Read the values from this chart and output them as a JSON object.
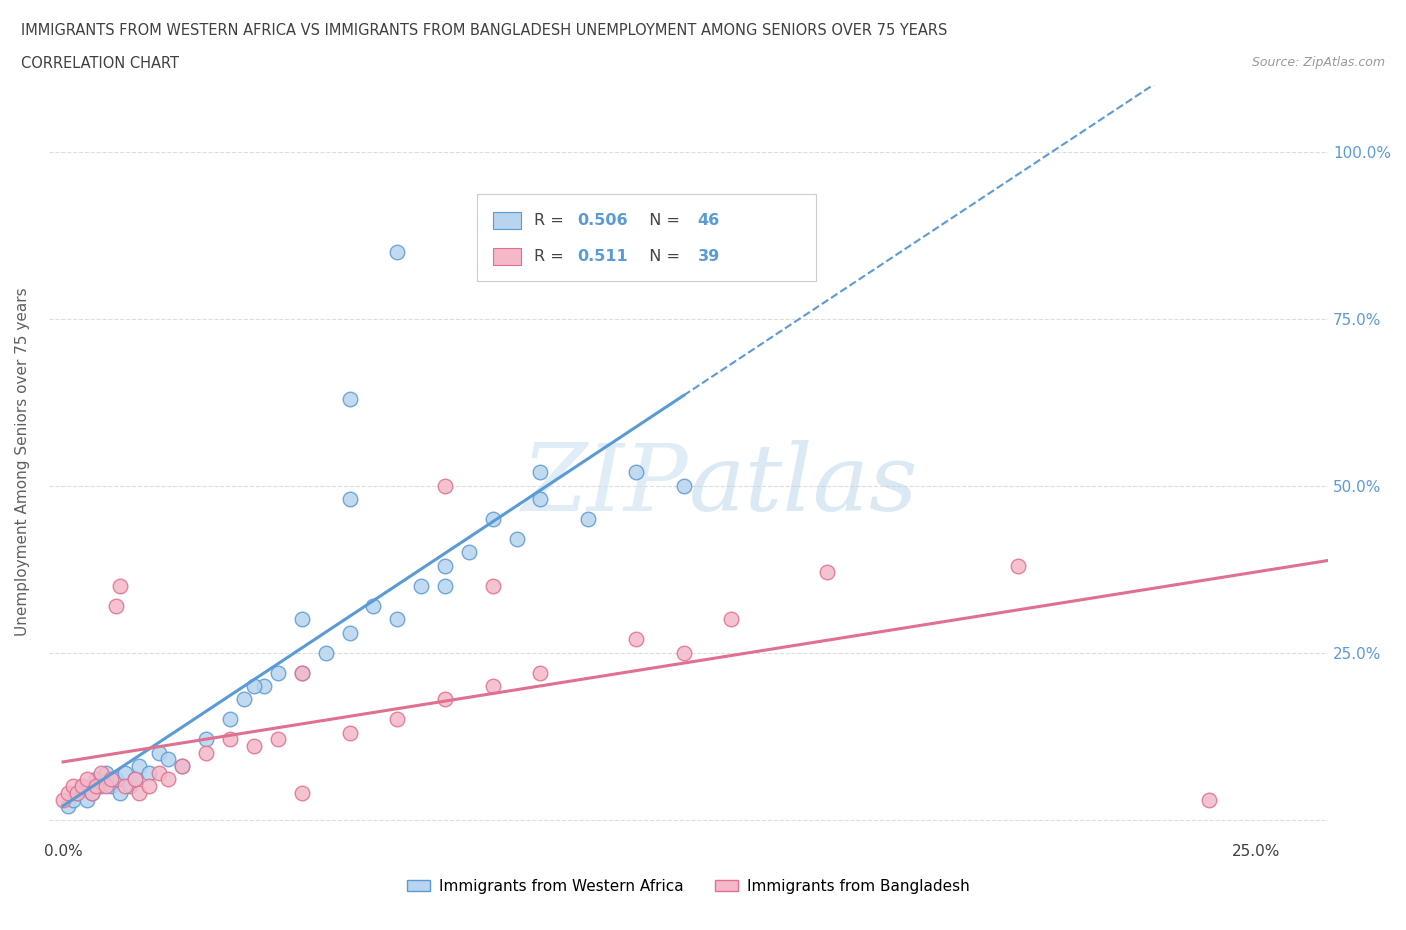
{
  "title_line1": "IMMIGRANTS FROM WESTERN AFRICA VS IMMIGRANTS FROM BANGLADESH UNEMPLOYMENT AMONG SENIORS OVER 75 YEARS",
  "title_line2": "CORRELATION CHART",
  "source": "Source: ZipAtlas.com",
  "ylabel": "Unemployment Among Seniors over 75 years",
  "watermark": "ZIPatlas",
  "legend_entries": [
    {
      "label": "Immigrants from Western Africa",
      "R": 0.506,
      "N": 46,
      "color": "#b8d4ee",
      "line_color": "#5b9bd5"
    },
    {
      "label": "Immigrants from Bangladesh",
      "R": 0.511,
      "N": 39,
      "color": "#f4b8c8",
      "line_color": "#e07090"
    }
  ],
  "xlim": [
    -0.003,
    0.265
  ],
  "ylim": [
    -0.03,
    1.1
  ],
  "xticks": [
    0.0,
    0.05,
    0.1,
    0.15,
    0.2,
    0.25
  ],
  "xtick_labels": [
    "0.0%",
    "",
    "",
    "",
    "",
    "25.0%"
  ],
  "ytick_positions": [
    0.0,
    0.25,
    0.5,
    0.75,
    1.0
  ],
  "ytick_labels": [
    "",
    "25.0%",
    "50.0%",
    "75.0%",
    "100.0%"
  ],
  "wa_x": [
    0.001,
    0.002,
    0.003,
    0.004,
    0.005,
    0.006,
    0.007,
    0.008,
    0.009,
    0.01,
    0.011,
    0.012,
    0.013,
    0.014,
    0.015,
    0.016,
    0.018,
    0.02,
    0.022,
    0.025,
    0.03,
    0.035,
    0.038,
    0.042,
    0.05,
    0.055,
    0.06,
    0.065,
    0.07,
    0.075,
    0.08,
    0.085,
    0.09,
    0.095,
    0.1,
    0.11,
    0.12,
    0.13,
    0.06,
    0.07,
    0.04,
    0.045,
    0.05,
    0.06,
    0.08,
    0.1
  ],
  "wa_y": [
    0.02,
    0.03,
    0.04,
    0.05,
    0.03,
    0.04,
    0.06,
    0.05,
    0.07,
    0.05,
    0.06,
    0.04,
    0.07,
    0.05,
    0.06,
    0.08,
    0.07,
    0.1,
    0.09,
    0.08,
    0.12,
    0.15,
    0.18,
    0.2,
    0.22,
    0.25,
    0.28,
    0.32,
    0.3,
    0.35,
    0.38,
    0.4,
    0.45,
    0.42,
    0.48,
    0.45,
    0.52,
    0.5,
    0.63,
    0.85,
    0.2,
    0.22,
    0.3,
    0.48,
    0.35,
    0.52
  ],
  "bd_x": [
    0.0,
    0.001,
    0.002,
    0.003,
    0.004,
    0.005,
    0.006,
    0.007,
    0.008,
    0.009,
    0.01,
    0.011,
    0.012,
    0.013,
    0.015,
    0.016,
    0.018,
    0.02,
    0.022,
    0.025,
    0.03,
    0.035,
    0.04,
    0.045,
    0.05,
    0.06,
    0.07,
    0.08,
    0.09,
    0.1,
    0.12,
    0.14,
    0.16,
    0.2,
    0.24,
    0.05,
    0.08,
    0.09,
    0.13
  ],
  "bd_y": [
    0.03,
    0.04,
    0.05,
    0.04,
    0.05,
    0.06,
    0.04,
    0.05,
    0.07,
    0.05,
    0.06,
    0.32,
    0.35,
    0.05,
    0.06,
    0.04,
    0.05,
    0.07,
    0.06,
    0.08,
    0.1,
    0.12,
    0.11,
    0.12,
    0.04,
    0.13,
    0.15,
    0.18,
    0.2,
    0.22,
    0.27,
    0.3,
    0.37,
    0.38,
    0.03,
    0.22,
    0.5,
    0.35,
    0.25
  ],
  "bg_color": "#ffffff",
  "grid_color": "#dddddd",
  "title_color": "#404040",
  "axis_label_color": "#606060",
  "right_tick_color": "#5b9bd5"
}
